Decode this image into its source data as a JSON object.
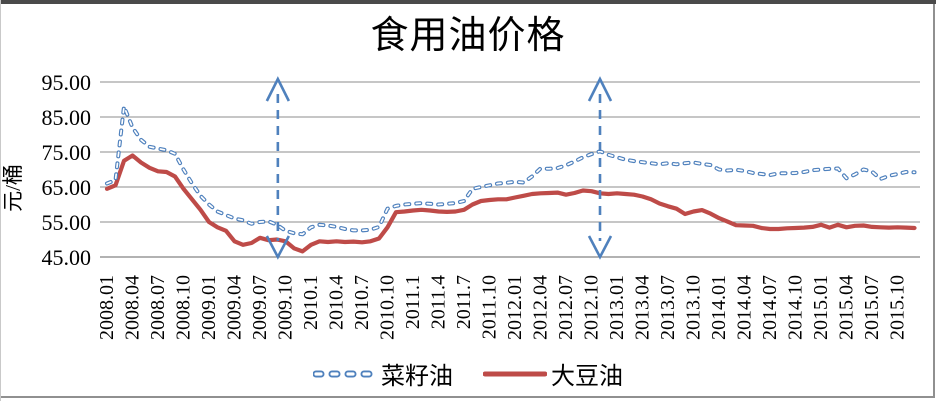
{
  "window": {
    "background": "#ffffff",
    "top_bar_color": "#4a4a4a",
    "border_color": "#909090"
  },
  "chart_data": {
    "type": "line",
    "title": "食用油价格",
    "ylabel": "元/桶",
    "xlabel": "",
    "ylim": [
      45,
      95
    ],
    "grid": true,
    "legend_position": "bottom",
    "y_ticks": [
      45,
      55,
      65,
      75,
      85,
      95
    ],
    "y_tick_labels": [
      "45.00",
      "55.00",
      "65.00",
      "75.00",
      "85.00",
      "95.00"
    ],
    "x_tick_labels": [
      "2008.01",
      "2008.04",
      "2008.07",
      "2008.10",
      "2009.01",
      "2009.04",
      "2009.07",
      "2009.10",
      "2010.1",
      "2010.4",
      "2010.7",
      "2010.10",
      "2011.1",
      "2011.4",
      "2011.7",
      "2011.10",
      "2012.01",
      "2012.04",
      "2012.07",
      "2012.10",
      "2013.01",
      "2013.04",
      "2013.07",
      "2013.10",
      "2014.01",
      "2014.04",
      "2014.07",
      "2014.10",
      "2015.01",
      "2015.04",
      "2015.07",
      "2015.10"
    ],
    "months_per_tick": 3,
    "x_start": "2008.01",
    "x_end": "2015.12",
    "gridline_color": "#8c8c8c",
    "axis_color": "#666666",
    "text_color": "#000000",
    "series": [
      {
        "name": "菜籽油",
        "color": "#4f81bd",
        "line_style": "dashed",
        "values": [
          66,
          67,
          88,
          82,
          78.5,
          76.5,
          76,
          75.5,
          74.5,
          70,
          66,
          62.5,
          60,
          58,
          57,
          56,
          55.5,
          54.5,
          55,
          55.2,
          54.2,
          52.5,
          51.8,
          51.5,
          53.5,
          54.2,
          54,
          53.6,
          53,
          52.6,
          52.6,
          52.8,
          53.6,
          58.8,
          59.6,
          60,
          60.2,
          60.4,
          60.2,
          60,
          60.2,
          60.4,
          61,
          64.5,
          65,
          65.5,
          66,
          66.2,
          66.5,
          66.3,
          68,
          70.3,
          70.2,
          70.4,
          71.2,
          72.3,
          73.5,
          74.4,
          75.2,
          74.2,
          73.5,
          72.8,
          72.4,
          72.1,
          71.8,
          71.5,
          71.8,
          71.5,
          71.8,
          72,
          71.6,
          71.3,
          70,
          69.7,
          69.9,
          69.6,
          69,
          68.7,
          68.4,
          68.9,
          68.9,
          69,
          69.3,
          69.8,
          70,
          70.2,
          70.3,
          67.5,
          68.6,
          70,
          69.4,
          67.3,
          68.2,
          68.7,
          69.3,
          69.2
        ]
      },
      {
        "name": "大豆油",
        "color": "#be4b48",
        "line_style": "solid",
        "values": [
          64.5,
          65.5,
          72.5,
          74,
          72,
          70.5,
          69.5,
          69.3,
          68,
          64.5,
          61.5,
          58.5,
          55,
          53.5,
          52.5,
          49.5,
          48.5,
          49,
          50.5,
          49.8,
          50,
          49.5,
          47.5,
          46.6,
          48.5,
          49.5,
          49.3,
          49.5,
          49.3,
          49.4,
          49.2,
          49.5,
          50.3,
          53.5,
          57.8,
          58,
          58.3,
          58.5,
          58.3,
          58,
          57.9,
          58,
          58.5,
          60,
          61,
          61.3,
          61.5,
          61.5,
          62,
          62.5,
          63,
          63.2,
          63.3,
          63.4,
          62.8,
          63.3,
          64,
          63.8,
          63.2,
          63,
          63.2,
          63,
          62.8,
          62.3,
          61.5,
          60.3,
          59.5,
          58.8,
          57.3,
          58,
          58.4,
          57.4,
          56.1,
          55.1,
          54.1,
          54,
          53.9,
          53.3,
          53,
          53,
          53.2,
          53.3,
          53.4,
          53.6,
          54.2,
          53.4,
          54.2,
          53.5,
          53.9,
          54,
          53.6,
          53.5,
          53.4,
          53.5,
          53.4,
          53.3
        ]
      }
    ],
    "annotations": [
      {
        "type": "vertical-double-arrow",
        "near_label": "2009.10",
        "x_index": 20.1,
        "color": "#4f81bd"
      },
      {
        "type": "vertical-double-arrow",
        "near_label": "2012.10",
        "x_index": 58,
        "color": "#4f81bd"
      }
    ]
  },
  "legend": {
    "items": [
      {
        "label": "菜籽油",
        "sample": "dashed-blue-line"
      },
      {
        "label": "大豆油",
        "sample": "solid-red-line"
      }
    ]
  }
}
